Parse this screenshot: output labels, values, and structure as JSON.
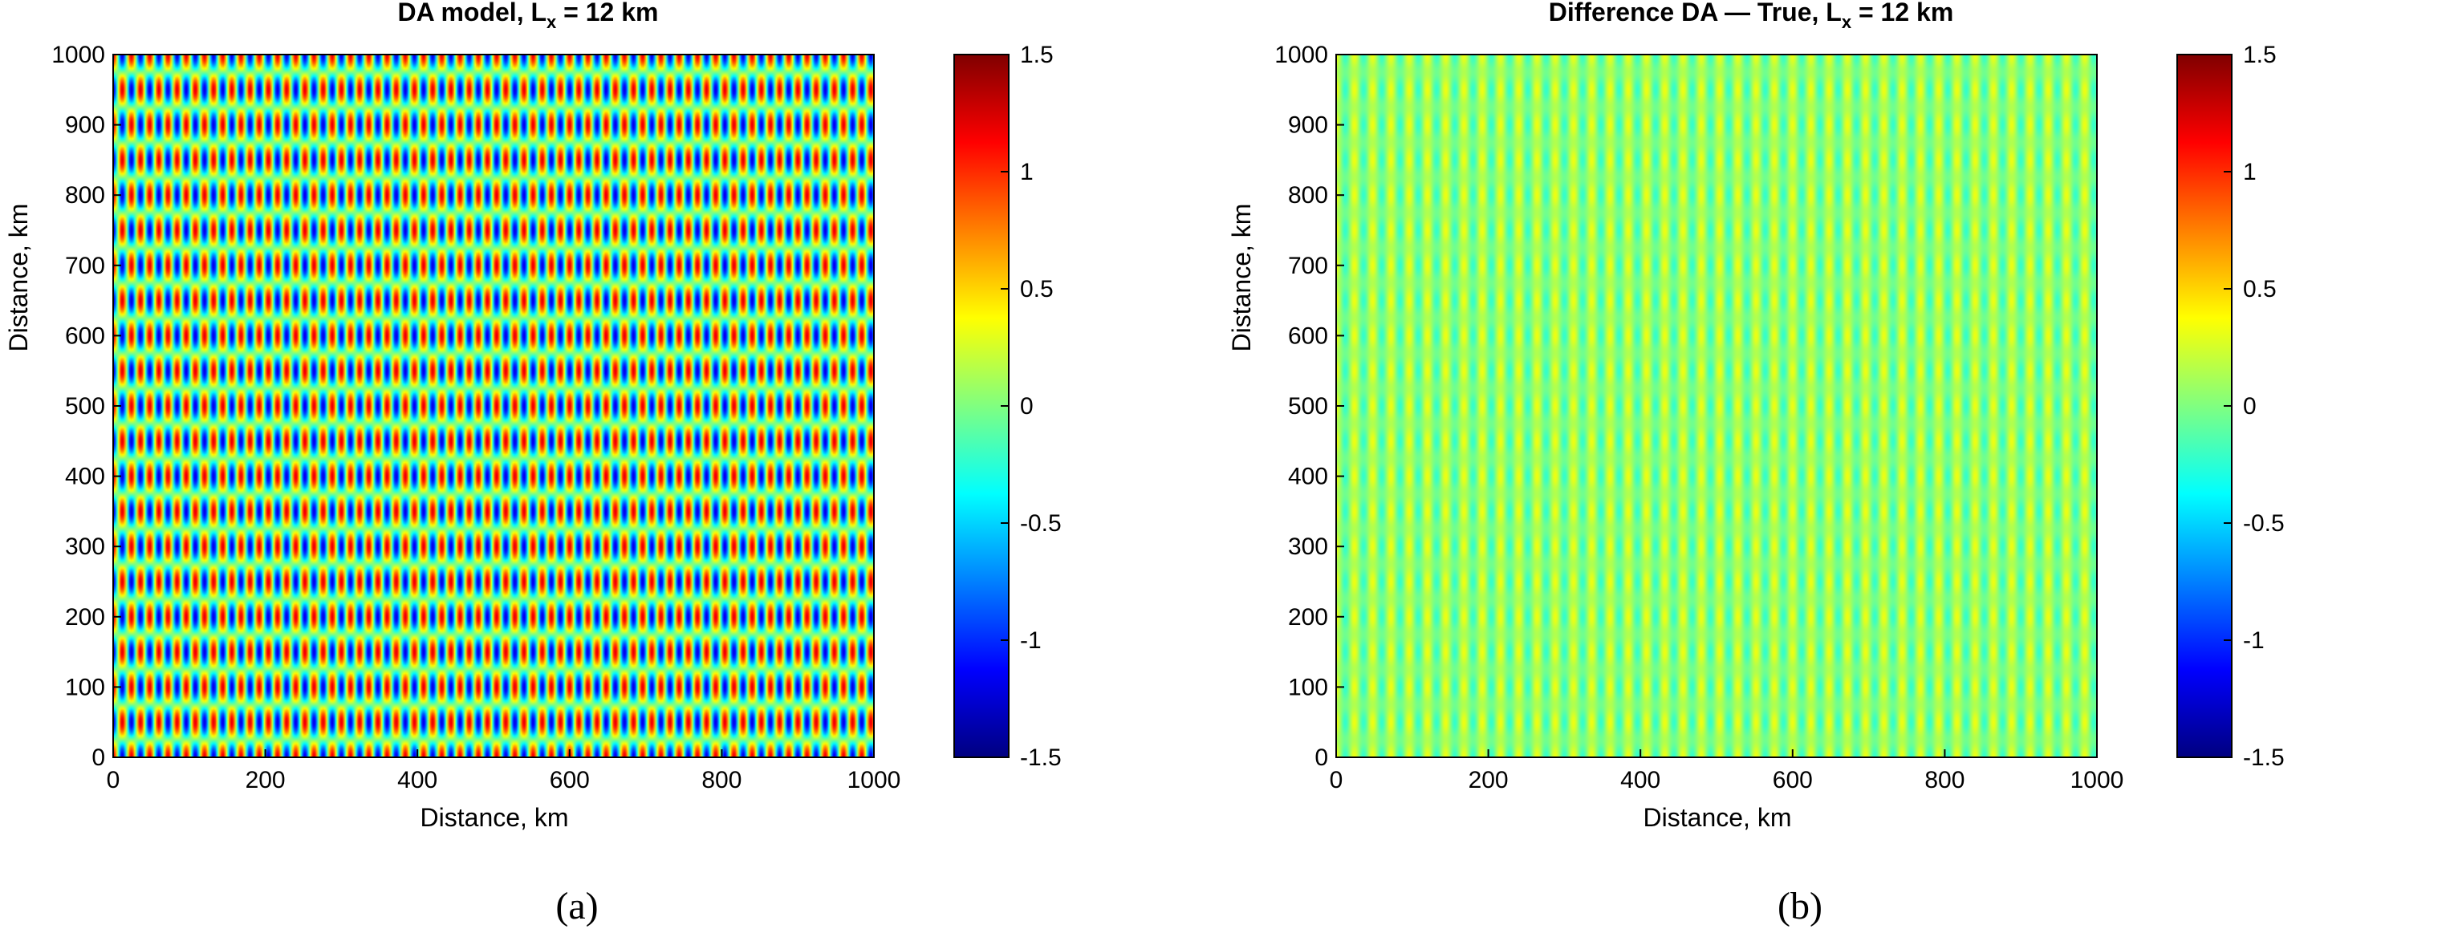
{
  "chart_data": [
    {
      "type": "heatmap",
      "id": "a",
      "title": "DA model, L",
      "title_sub": "x",
      "title_suffix": " = 12 km",
      "xlabel": "Distance, km",
      "ylabel": "Distance, km",
      "xlim": [
        0,
        1000
      ],
      "ylim": [
        0,
        1000
      ],
      "xticks": [
        "0",
        "200",
        "400",
        "600",
        "800",
        "1000"
      ],
      "yticks": [
        "0",
        "100",
        "200",
        "300",
        "400",
        "500",
        "600",
        "700",
        "800",
        "900",
        "1000"
      ],
      "colorbar": {
        "range": [
          -1.5,
          1.5
        ],
        "ticks": [
          "-1.5",
          "-1",
          "-0.5",
          "0",
          "0.5",
          "1",
          "1.5"
        ],
        "colormap": "jet"
      },
      "field": {
        "x_wavelength_km": 24,
        "y_wavelength_km": 100,
        "amplitude": 1.2
      },
      "caption": "(a)"
    },
    {
      "type": "heatmap",
      "id": "b",
      "title": "Difference     DA — True, L",
      "title_sub": "x",
      "title_suffix": " = 12 km",
      "xlabel": "Distance, km",
      "ylabel": "Distance, km",
      "xlim": [
        0,
        1000
      ],
      "ylim": [
        0,
        1000
      ],
      "xticks": [
        "0",
        "200",
        "400",
        "600",
        "800",
        "1000"
      ],
      "yticks": [
        "0",
        "100",
        "200",
        "300",
        "400",
        "500",
        "600",
        "700",
        "800",
        "900",
        "1000"
      ],
      "colorbar": {
        "range": [
          -1.5,
          1.5
        ],
        "ticks": [
          "-1.5",
          "-1",
          "-0.5",
          "0",
          "0.5",
          "1",
          "1.5"
        ],
        "colormap": "jet"
      },
      "field": {
        "x_wavelength_km": 24,
        "y_wavelength_km": 100,
        "amplitude": 0.35
      },
      "caption": "(b)"
    }
  ],
  "colors": {
    "background": "#ffffff",
    "axis": "#000000"
  }
}
